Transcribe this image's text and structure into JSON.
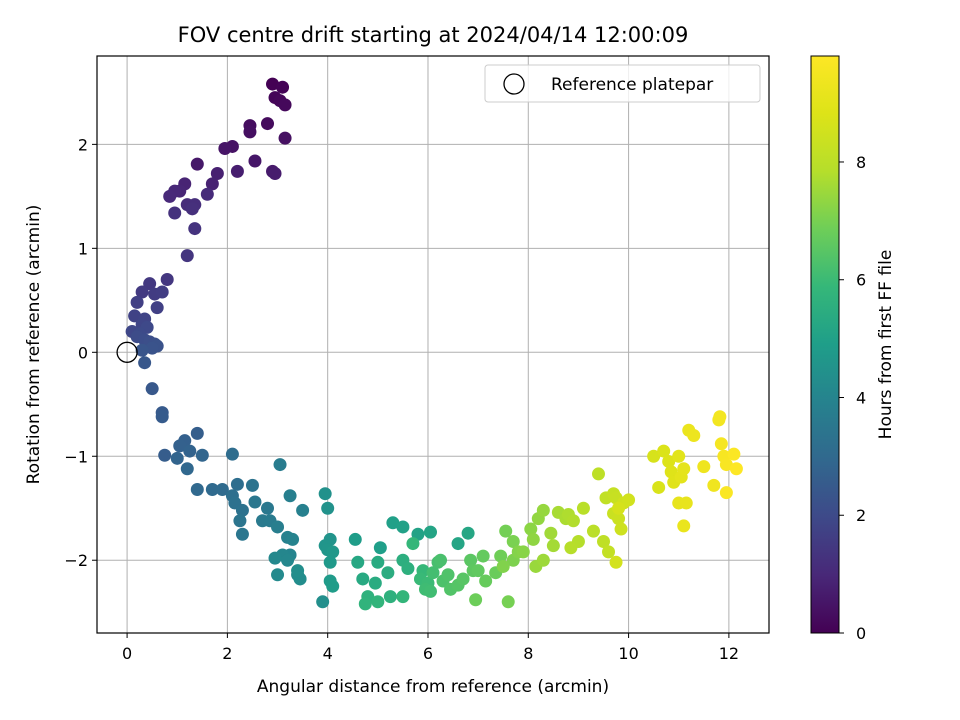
{
  "chart_data": {
    "type": "scatter",
    "title": "FOV centre drift starting at 2024/04/14 12:00:09",
    "xlabel": "Angular distance from reference (arcmin)",
    "ylabel": "Rotation from reference (arcmin)",
    "xlim": [
      -0.6,
      12.8
    ],
    "ylim": [
      -2.7,
      2.85
    ],
    "xticks": [
      0,
      2,
      4,
      6,
      8,
      10,
      12
    ],
    "yticks": [
      -2,
      -1,
      0,
      1,
      2
    ],
    "grid": true,
    "colormap": "viridis",
    "colorbar": {
      "label": "Hours from first FF file",
      "range": [
        0,
        9.8
      ],
      "ticks": [
        0,
        2,
        4,
        6,
        8
      ]
    },
    "reference": {
      "x": 0,
      "y": 0,
      "label": "Reference platepar"
    },
    "legend": {
      "placement": "upper right",
      "entries": [
        "Reference platepar"
      ]
    },
    "series": [
      {
        "marker": "circle",
        "points": [
          [
            2.9,
            2.58
          ],
          [
            3.1,
            2.55
          ],
          [
            2.95,
            2.45
          ],
          [
            3.05,
            2.42
          ],
          [
            3.15,
            2.38
          ],
          [
            2.8,
            2.2
          ],
          [
            2.45,
            2.18
          ],
          [
            2.45,
            2.12
          ],
          [
            3.15,
            2.06
          ],
          [
            2.1,
            1.98
          ],
          [
            1.95,
            1.96
          ],
          [
            2.55,
            1.84
          ],
          [
            1.4,
            1.81
          ],
          [
            2.9,
            1.74
          ],
          [
            2.95,
            1.72
          ],
          [
            2.2,
            1.74
          ],
          [
            1.8,
            1.72
          ],
          [
            1.7,
            1.62
          ],
          [
            1.15,
            1.62
          ],
          [
            1.05,
            1.55
          ],
          [
            0.95,
            1.55
          ],
          [
            0.85,
            1.5
          ],
          [
            1.6,
            1.52
          ],
          [
            1.2,
            1.42
          ],
          [
            1.35,
            1.42
          ],
          [
            1.3,
            1.38
          ],
          [
            0.95,
            1.34
          ],
          [
            1.35,
            1.19
          ],
          [
            1.2,
            0.93
          ],
          [
            0.8,
            0.7
          ],
          [
            0.45,
            0.66
          ],
          [
            0.3,
            0.58
          ],
          [
            0.55,
            0.56
          ],
          [
            0.7,
            0.58
          ],
          [
            0.2,
            0.48
          ],
          [
            0.6,
            0.43
          ],
          [
            0.15,
            0.35
          ],
          [
            0.35,
            0.32
          ],
          [
            0.3,
            0.27
          ],
          [
            0.1,
            0.2
          ],
          [
            0.4,
            0.24
          ],
          [
            0.25,
            0.18
          ],
          [
            0.2,
            0.15
          ],
          [
            0.35,
            0.12
          ],
          [
            0.45,
            0.1
          ],
          [
            0.55,
            0.08
          ],
          [
            0.6,
            0.06
          ],
          [
            0.5,
            0.04
          ],
          [
            0.3,
            0.02
          ],
          [
            0.35,
            -0.1
          ],
          [
            0.5,
            -0.35
          ],
          [
            0.7,
            -0.58
          ],
          [
            0.7,
            -0.62
          ],
          [
            0.75,
            -0.99
          ],
          [
            1.4,
            -0.78
          ],
          [
            1.15,
            -0.85
          ],
          [
            1.05,
            -0.9
          ],
          [
            1.25,
            -0.95
          ],
          [
            1.0,
            -1.02
          ],
          [
            1.5,
            -0.99
          ],
          [
            1.2,
            -1.12
          ],
          [
            1.4,
            -1.32
          ],
          [
            1.7,
            -1.32
          ],
          [
            1.9,
            -1.32
          ],
          [
            2.1,
            -0.98
          ],
          [
            2.2,
            -1.27
          ],
          [
            2.1,
            -1.38
          ],
          [
            2.15,
            -1.45
          ],
          [
            2.3,
            -1.52
          ],
          [
            2.5,
            -1.28
          ],
          [
            2.25,
            -1.62
          ],
          [
            2.3,
            -1.75
          ],
          [
            2.55,
            -1.44
          ],
          [
            2.8,
            -1.5
          ],
          [
            2.7,
            -1.62
          ],
          [
            2.85,
            -1.62
          ],
          [
            3.05,
            -1.08
          ],
          [
            3.0,
            -1.68
          ],
          [
            3.25,
            -1.38
          ],
          [
            3.5,
            -1.52
          ],
          [
            3.2,
            -1.78
          ],
          [
            3.3,
            -1.8
          ],
          [
            3.25,
            -1.95
          ],
          [
            3.1,
            -1.95
          ],
          [
            3.2,
            -2.0
          ],
          [
            2.95,
            -1.98
          ],
          [
            3.0,
            -2.14
          ],
          [
            3.4,
            -2.14
          ],
          [
            3.45,
            -2.18
          ],
          [
            3.4,
            -2.1
          ],
          [
            3.9,
            -2.4
          ],
          [
            3.95,
            -1.36
          ],
          [
            4.0,
            -1.5
          ],
          [
            4.05,
            -1.8
          ],
          [
            3.95,
            -1.86
          ],
          [
            4.0,
            -1.9
          ],
          [
            4.1,
            -1.92
          ],
          [
            4.05,
            -2.02
          ],
          [
            4.05,
            -2.2
          ],
          [
            4.1,
            -2.25
          ],
          [
            4.55,
            -1.8
          ],
          [
            5.05,
            -1.88
          ],
          [
            5.3,
            -1.64
          ],
          [
            5.5,
            -1.68
          ],
          [
            5.8,
            -1.75
          ],
          [
            6.05,
            -1.73
          ],
          [
            6.6,
            -1.84
          ],
          [
            6.8,
            -1.74
          ],
          [
            4.6,
            -2.02
          ],
          [
            4.7,
            -2.18
          ],
          [
            5.0,
            -2.02
          ],
          [
            4.95,
            -2.22
          ],
          [
            5.2,
            -2.12
          ],
          [
            5.5,
            -2.0
          ],
          [
            5.6,
            -2.08
          ],
          [
            5.25,
            -2.35
          ],
          [
            4.8,
            -2.35
          ],
          [
            4.75,
            -2.42
          ],
          [
            5.0,
            -2.4
          ],
          [
            5.5,
            -2.35
          ],
          [
            5.7,
            -1.84
          ],
          [
            5.9,
            -2.1
          ],
          [
            5.85,
            -2.18
          ],
          [
            6.0,
            -2.22
          ],
          [
            5.95,
            -2.28
          ],
          [
            6.05,
            -2.3
          ],
          [
            6.1,
            -2.12
          ],
          [
            6.2,
            -2.02
          ],
          [
            6.25,
            -2.0
          ],
          [
            6.3,
            -2.2
          ],
          [
            6.4,
            -2.14
          ],
          [
            6.45,
            -2.28
          ],
          [
            6.6,
            -2.24
          ],
          [
            6.7,
            -2.18
          ],
          [
            6.85,
            -2.0
          ],
          [
            6.9,
            -2.1
          ],
          [
            7.0,
            -2.1
          ],
          [
            7.1,
            -1.96
          ],
          [
            7.15,
            -2.2
          ],
          [
            7.35,
            -2.12
          ],
          [
            6.95,
            -2.38
          ],
          [
            7.45,
            -1.96
          ],
          [
            7.55,
            -1.72
          ],
          [
            7.6,
            -2.4
          ],
          [
            7.7,
            -1.82
          ],
          [
            7.7,
            -2.0
          ],
          [
            7.5,
            -2.06
          ],
          [
            7.8,
            -1.92
          ],
          [
            7.9,
            -1.92
          ],
          [
            8.05,
            -1.7
          ],
          [
            8.1,
            -1.8
          ],
          [
            8.2,
            -1.6
          ],
          [
            8.3,
            -1.52
          ],
          [
            8.15,
            -2.06
          ],
          [
            8.3,
            -2.0
          ],
          [
            8.45,
            -1.74
          ],
          [
            8.5,
            -1.86
          ],
          [
            8.6,
            -1.54
          ],
          [
            8.75,
            -1.6
          ],
          [
            8.8,
            -1.56
          ],
          [
            8.9,
            -1.62
          ],
          [
            9.0,
            -1.82
          ],
          [
            8.85,
            -1.88
          ],
          [
            9.1,
            -1.5
          ],
          [
            9.3,
            -1.72
          ],
          [
            9.4,
            -1.17
          ],
          [
            9.5,
            -1.82
          ],
          [
            9.55,
            -1.4
          ],
          [
            9.6,
            -1.92
          ],
          [
            9.7,
            -1.36
          ],
          [
            9.75,
            -1.4
          ],
          [
            9.7,
            -1.55
          ],
          [
            9.8,
            -1.6
          ],
          [
            9.85,
            -1.7
          ],
          [
            9.9,
            -1.45
          ],
          [
            10.0,
            -1.42
          ],
          [
            9.75,
            -2.02
          ],
          [
            9.8,
            -1.5
          ],
          [
            10.5,
            -1.0
          ],
          [
            10.6,
            -1.3
          ],
          [
            10.7,
            -0.95
          ],
          [
            10.8,
            -1.05
          ],
          [
            10.85,
            -1.15
          ],
          [
            10.9,
            -1.25
          ],
          [
            11.0,
            -1.0
          ],
          [
            11.05,
            -1.2
          ],
          [
            11.1,
            -1.12
          ],
          [
            11.0,
            -1.45
          ],
          [
            11.15,
            -1.45
          ],
          [
            11.1,
            -1.67
          ],
          [
            11.2,
            -0.75
          ],
          [
            11.3,
            -0.8
          ],
          [
            11.5,
            -1.1
          ],
          [
            11.7,
            -1.28
          ],
          [
            11.8,
            -0.65
          ],
          [
            11.82,
            -0.62
          ],
          [
            11.85,
            -0.88
          ],
          [
            11.9,
            -1.0
          ],
          [
            11.95,
            -1.08
          ],
          [
            11.95,
            -1.35
          ],
          [
            12.1,
            -0.98
          ],
          [
            12.15,
            -1.12
          ]
        ]
      }
    ]
  }
}
